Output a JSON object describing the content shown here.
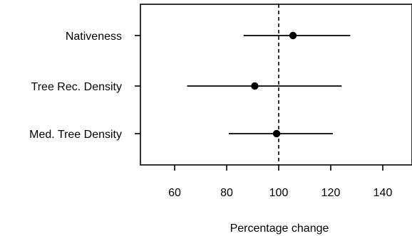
{
  "chart_data": {
    "type": "forest",
    "title": "",
    "xlabel": "Percentage change",
    "ylabel": "",
    "xlim": [
      45,
      150
    ],
    "x_ticks": [
      60,
      80,
      100,
      120,
      140
    ],
    "x_tick_labels": [
      "60",
      "80",
      "100",
      "120",
      "140"
    ],
    "reference_line": {
      "x": 100,
      "style": "dashed"
    },
    "grid": false,
    "legend": "none",
    "categories": [
      "Nativeness",
      "Tree Rec. Density",
      "Med. Tree Density"
    ],
    "estimates": [
      105.5,
      90.8,
      99.2
    ],
    "lower": [
      86.5,
      64.8,
      80.8
    ],
    "upper": [
      127.5,
      124.2,
      120.8
    ],
    "colors": {
      "point": "#000000",
      "line": "#000000",
      "axis": "#000000"
    }
  }
}
